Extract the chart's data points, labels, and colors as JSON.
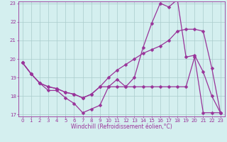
{
  "xlabel": "Windchill (Refroidissement éolien,°C)",
  "bg_color": "#d4efef",
  "line_color": "#993399",
  "grid_color": "#aacccc",
  "series1": {
    "x": [
      0,
      1,
      2,
      3,
      4,
      5,
      6,
      7,
      8,
      9,
      10,
      11,
      12,
      13,
      14,
      15,
      16,
      17,
      18,
      19,
      20,
      21,
      22,
      23
    ],
    "y": [
      19.8,
      19.2,
      18.7,
      18.3,
      18.3,
      17.9,
      17.6,
      17.1,
      17.3,
      17.5,
      18.5,
      18.9,
      18.5,
      19.0,
      20.6,
      21.9,
      23.0,
      22.8,
      23.2,
      20.1,
      20.2,
      19.3,
      18.0,
      17.1
    ]
  },
  "series2": {
    "x": [
      0,
      1,
      2,
      3,
      4,
      5,
      6,
      7,
      8,
      9,
      10,
      11,
      12,
      13,
      14,
      15,
      16,
      17,
      18,
      19,
      20,
      21,
      22,
      23
    ],
    "y": [
      19.8,
      19.2,
      18.7,
      18.5,
      18.4,
      18.2,
      18.1,
      17.9,
      18.1,
      18.5,
      19.0,
      19.4,
      19.7,
      20.0,
      20.3,
      20.5,
      20.7,
      21.0,
      21.5,
      21.6,
      21.6,
      21.5,
      19.5,
      17.1
    ]
  },
  "series3": {
    "x": [
      0,
      1,
      2,
      3,
      4,
      5,
      6,
      7,
      8,
      9,
      10,
      11,
      12,
      13,
      14,
      15,
      16,
      17,
      18,
      19,
      20,
      21,
      22,
      23
    ],
    "y": [
      19.8,
      19.2,
      18.7,
      18.5,
      18.4,
      18.2,
      18.1,
      17.9,
      18.1,
      18.5,
      18.5,
      18.5,
      18.5,
      18.5,
      18.5,
      18.5,
      18.5,
      18.5,
      18.5,
      18.5,
      20.1,
      17.1,
      17.1,
      17.1
    ]
  },
  "ylim": [
    17,
    23
  ],
  "xlim": [
    -0.5,
    23.5
  ],
  "yticks": [
    17,
    18,
    19,
    20,
    21,
    22,
    23
  ],
  "xticks": [
    0,
    1,
    2,
    3,
    4,
    5,
    6,
    7,
    8,
    9,
    10,
    11,
    12,
    13,
    14,
    15,
    16,
    17,
    18,
    19,
    20,
    21,
    22,
    23
  ]
}
